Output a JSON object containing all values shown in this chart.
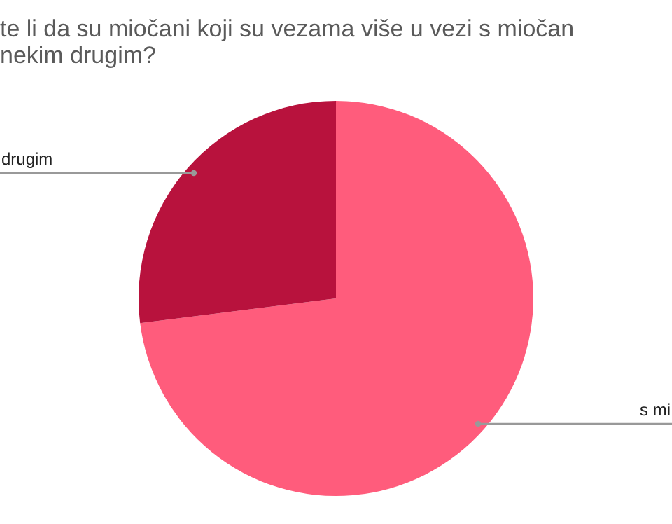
{
  "chart_data": {
    "type": "pie",
    "title": "te li da su miočani koji su vezama više u vezi s miočan\nnekim drugim?",
    "categories": [
      "s mi",
      "drugim"
    ],
    "values": [
      73,
      27
    ],
    "colors": [
      "#ff5c7c",
      "#b8123d"
    ]
  }
}
